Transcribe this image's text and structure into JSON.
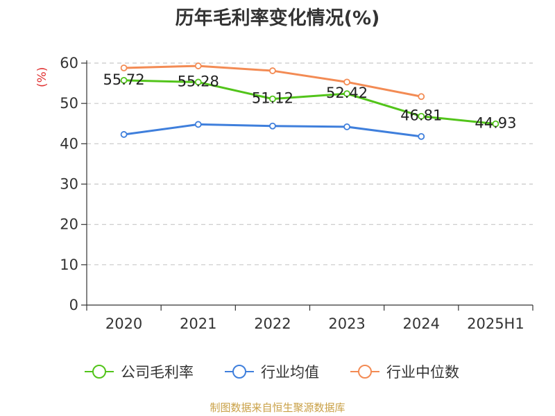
{
  "chart_data": {
    "type": "line",
    "title": "历年毛利率变化情况(%)",
    "ylabel": "(%)",
    "xlabel": "",
    "categories": [
      "2020",
      "2021",
      "2022",
      "2023",
      "2024",
      "2025H1"
    ],
    "ylim": [
      0,
      60
    ],
    "yticks": [
      0,
      10,
      20,
      30,
      40,
      50,
      60
    ],
    "grid": true,
    "legend_position": "bottom",
    "series": [
      {
        "name": "公司毛利率",
        "color": "#52c41a",
        "values": [
          55.72,
          55.28,
          51.12,
          52.42,
          46.81,
          44.93
        ],
        "labels": [
          "55.72",
          "55.28",
          "51.12",
          "52.42",
          "46.81",
          "44.93"
        ]
      },
      {
        "name": "行业均值",
        "color": "#3f7fdc",
        "values": [
          42.3,
          44.8,
          44.4,
          44.2,
          41.8,
          null
        ]
      },
      {
        "name": "行业中位数",
        "color": "#f38b54",
        "values": [
          58.8,
          59.3,
          58.1,
          55.3,
          51.7,
          null
        ]
      }
    ]
  },
  "source": "制图数据来自恒生聚源数据库"
}
